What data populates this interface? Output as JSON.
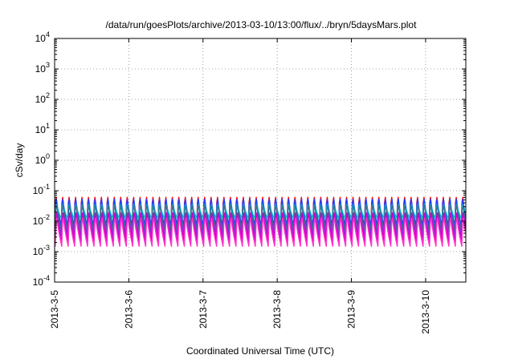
{
  "chart_data": {
    "type": "line",
    "title": "/data/run/goesPlots/archive/2013-03-10/13:00/flux/../bryn/5daysMars.plot",
    "xlabel": "Coordinated Universal Time (UTC)",
    "ylabel": "cSv/day",
    "x_axis": {
      "type": "date",
      "range": [
        "2013-03-05T00:00",
        "2013-03-10T13:00"
      ],
      "ticks": [
        "2013-3-5",
        "2013-3-6",
        "2013-3-7",
        "2013-3-8",
        "2013-3-9",
        "2013-3-10"
      ]
    },
    "y_axis": {
      "scale": "log",
      "range": [
        0.0001,
        10000
      ],
      "ticks": [
        {
          "value": 0.0001,
          "base": "10",
          "exp": "-4"
        },
        {
          "value": 0.001,
          "base": "10",
          "exp": "-3"
        },
        {
          "value": 0.01,
          "base": "10",
          "exp": "-2"
        },
        {
          "value": 0.1,
          "base": "10",
          "exp": "-1"
        },
        {
          "value": 1,
          "base": "10",
          "exp": "0"
        },
        {
          "value": 10,
          "base": "10",
          "exp": "1"
        },
        {
          "value": 100,
          "base": "10",
          "exp": "2"
        },
        {
          "value": 1000,
          "base": "10",
          "exp": "3"
        },
        {
          "value": 10000,
          "base": "10",
          "exp": "4"
        }
      ]
    },
    "grid": true,
    "pattern": {
      "cycles_per_day": 11.5,
      "peak_phase": 0.18
    },
    "series": [
      {
        "color": "#ff0000",
        "max": 0.11,
        "min": 0.004
      },
      {
        "color": "#8a2be2",
        "max": 0.095,
        "min": 0.0035
      },
      {
        "color": "#1e40ff",
        "max": 0.08,
        "min": 0.007
      },
      {
        "color": "#00bcd4",
        "max": 0.045,
        "min": 0.012
      },
      {
        "color": "#3c6e8f",
        "max": 0.05,
        "min": 0.005
      },
      {
        "color": "#ff00ff",
        "max": 0.025,
        "min": 0.0018
      },
      {
        "color": "#cc00cc",
        "max": 0.03,
        "min": 0.0022
      },
      {
        "color": "#ff33cc",
        "max": 0.02,
        "min": 0.0015
      }
    ]
  }
}
